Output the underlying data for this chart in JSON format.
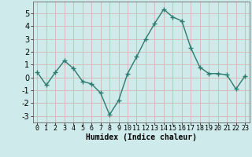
{
  "x": [
    0,
    1,
    2,
    3,
    4,
    5,
    6,
    7,
    8,
    9,
    10,
    11,
    12,
    13,
    14,
    15,
    16,
    17,
    18,
    19,
    20,
    21,
    22,
    23
  ],
  "y": [
    0.4,
    -0.6,
    0.4,
    1.3,
    0.7,
    -0.3,
    -0.5,
    -1.2,
    -2.9,
    -1.8,
    0.3,
    1.6,
    3.0,
    4.2,
    5.3,
    4.7,
    4.4,
    2.3,
    0.8,
    0.3,
    0.3,
    0.2,
    -0.9,
    0.1
  ],
  "line_color": "#2d7a6e",
  "marker": "+",
  "marker_size": 4,
  "line_width": 1.0,
  "bg_color": "#ceeaea",
  "grid_major_color": "#b8d4d4",
  "grid_minor_color": "#d4b8b8",
  "xlabel": "Humidex (Indice chaleur)",
  "xlim": [
    -0.5,
    23.5
  ],
  "ylim": [
    -3.5,
    5.9
  ],
  "yticks": [
    -3,
    -2,
    -1,
    0,
    1,
    2,
    3,
    4,
    5
  ],
  "xticks": [
    0,
    1,
    2,
    3,
    4,
    5,
    6,
    7,
    8,
    9,
    10,
    11,
    12,
    13,
    14,
    15,
    16,
    17,
    18,
    19,
    20,
    21,
    22,
    23
  ],
  "xlabel_fontsize": 7,
  "tick_fontsize": 6,
  "ytick_fontsize": 7
}
